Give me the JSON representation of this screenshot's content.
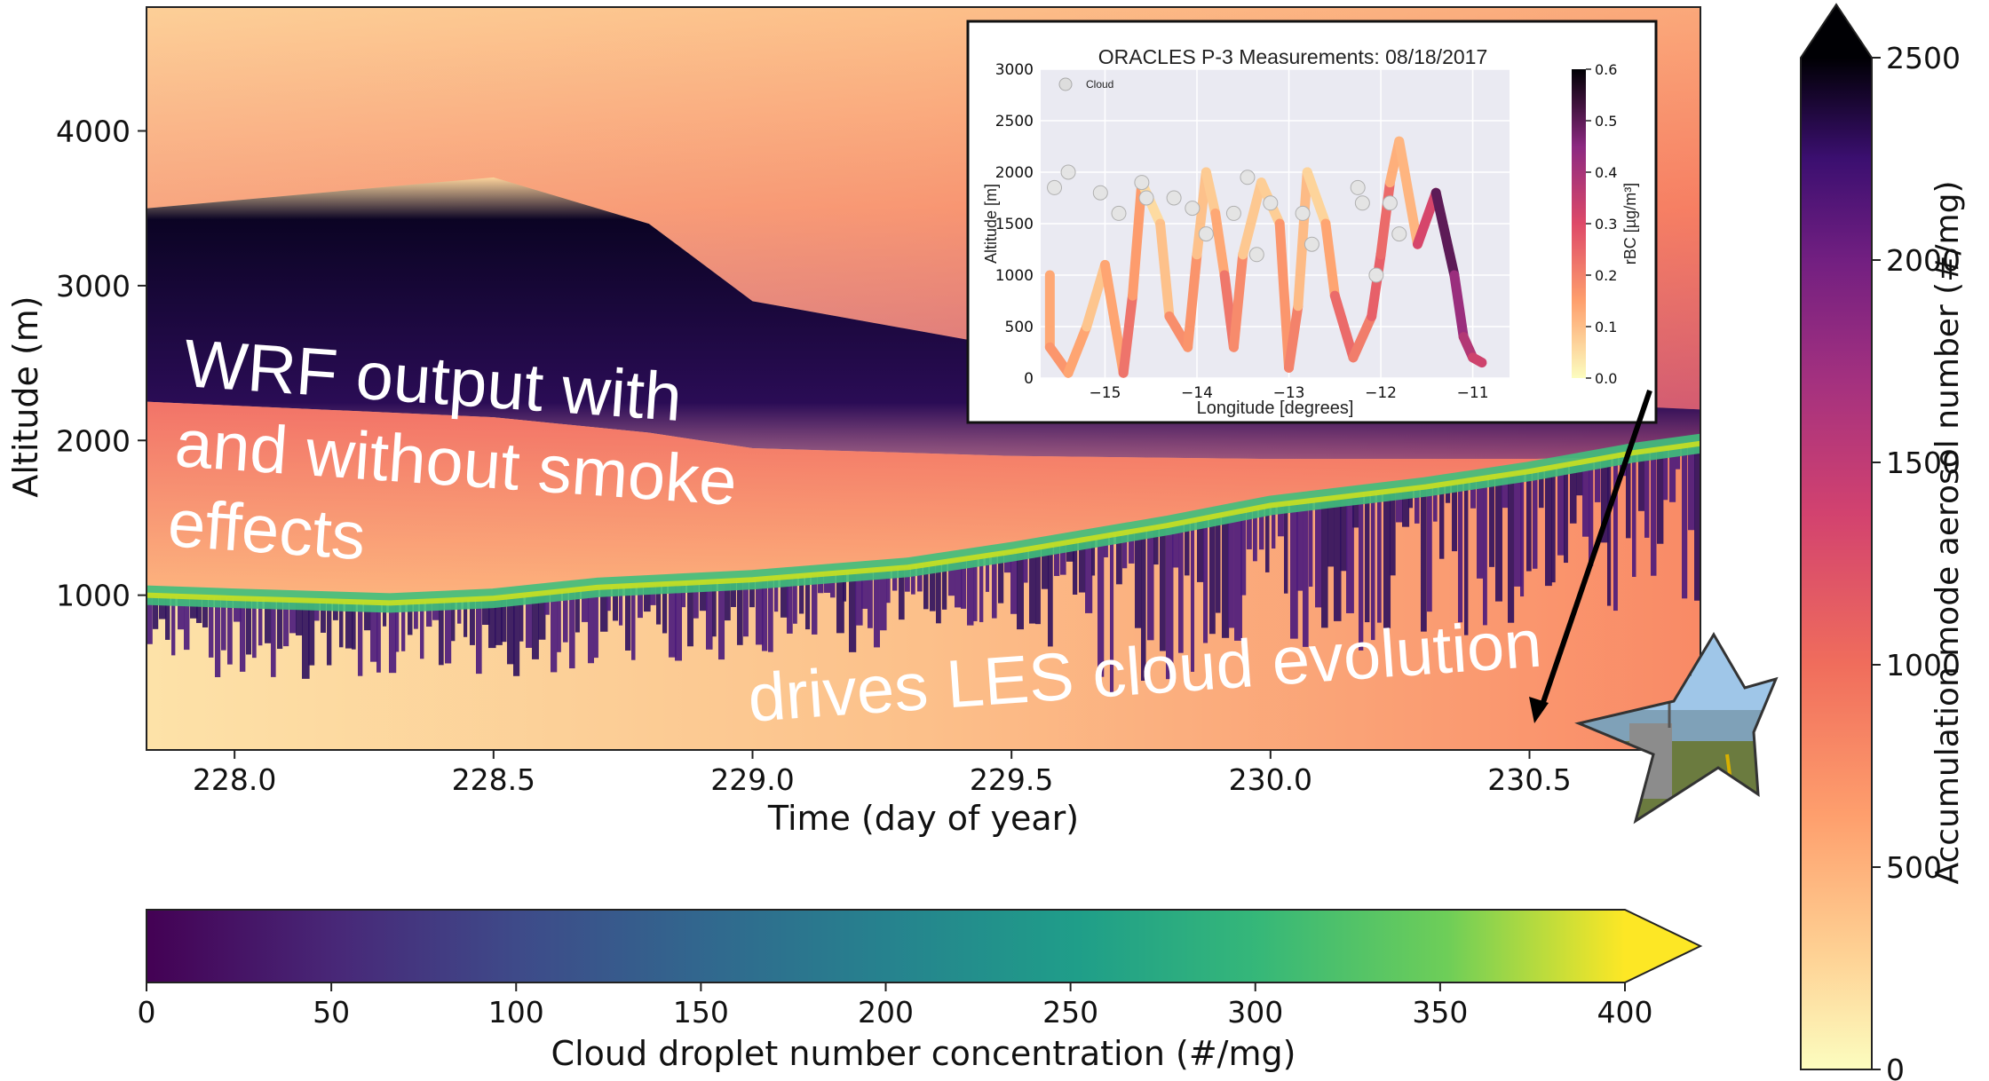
{
  "chart_data": [
    {
      "type": "heatmap",
      "xlabel": "Time (day of year)",
      "ylabel": "Altitude (m)",
      "xlim": [
        227.83,
        230.83
      ],
      "ylim": [
        0,
        4800
      ],
      "x_ticks": [
        228.0,
        228.5,
        229.0,
        229.5,
        230.0,
        230.5
      ],
      "y_ticks": [
        1000,
        2000,
        3000,
        4000
      ],
      "smoke_layer": {
        "description_values_day": [
          227.83,
          228.5,
          228.8,
          229.0,
          229.5,
          230.0,
          230.5,
          230.83
        ],
        "top_altitude_m": [
          3500,
          3700,
          3400,
          2900,
          2600,
          2350,
          2250,
          2200
        ],
        "bottom_altitude_m": [
          2250,
          2150,
          2050,
          1950,
          1900,
          1880,
          1880,
          1900
        ]
      },
      "cloud_layer": {
        "x": [
          227.83,
          228.0,
          228.3,
          228.5,
          228.7,
          229.0,
          229.3,
          229.5,
          229.8,
          230.0,
          230.3,
          230.5,
          230.7,
          230.83
        ],
        "altitude_m": [
          1000,
          980,
          950,
          980,
          1050,
          1100,
          1180,
          1280,
          1450,
          1580,
          1700,
          1800,
          1920,
          1980
        ]
      },
      "colorbars": [
        {
          "label": "Accumulation mode aerosol number (#/mg)",
          "orientation": "vertical",
          "ticks": [
            0,
            500,
            1000,
            1500,
            2000,
            2500
          ],
          "range": [
            0,
            2500
          ],
          "extend": "max",
          "colormap": "magma_r"
        },
        {
          "label": "Cloud droplet number concentration (#/mg)",
          "orientation": "horizontal",
          "ticks": [
            0,
            50,
            100,
            150,
            200,
            250,
            300,
            350,
            400
          ],
          "range": [
            0,
            400
          ],
          "extend": "max",
          "colormap": "viridis"
        }
      ]
    },
    {
      "type": "scatter",
      "title": "ORACLES P-3 Measurements: 08/18/2017",
      "xlabel": "Longitude [degrees]",
      "ylabel": "Altitude [m]",
      "xlim": [
        -15.7,
        -10.6
      ],
      "ylim": [
        0,
        3000
      ],
      "x_ticks": [
        -15,
        -14,
        -13,
        -12,
        -11
      ],
      "y_ticks": [
        0,
        500,
        1000,
        1500,
        2000,
        2500,
        3000
      ],
      "legend": {
        "entries": [
          "Cloud"
        ],
        "placement": "top-left"
      },
      "colorbar": {
        "label": "rBC [µg/m³]",
        "ticks": [
          0.0,
          0.1,
          0.2,
          0.3,
          0.4,
          0.5,
          0.6
        ],
        "range": [
          0,
          0.6
        ]
      },
      "flight_track": {
        "x": [
          -15.6,
          -15.6,
          -15.4,
          -15.2,
          -15.0,
          -14.8,
          -14.7,
          -14.6,
          -14.4,
          -14.3,
          -14.1,
          -14.0,
          -13.9,
          -13.8,
          -13.7,
          -13.6,
          -13.5,
          -13.3,
          -13.1,
          -13.0,
          -12.9,
          -12.8,
          -12.6,
          -12.5,
          -12.3,
          -12.1,
          -12.0,
          -11.9,
          -11.8,
          -11.6,
          -11.4,
          -11.2,
          -11.1,
          -11.0,
          -10.9
        ],
        "alt": [
          1000,
          300,
          50,
          500,
          1100,
          50,
          800,
          1900,
          1500,
          600,
          300,
          1200,
          2000,
          1600,
          1000,
          300,
          1200,
          1900,
          1500,
          100,
          700,
          2000,
          1500,
          800,
          200,
          600,
          1200,
          1900,
          2300,
          1300,
          1800,
          1000,
          400,
          200,
          150
        ],
        "rbc": [
          0.12,
          0.15,
          0.18,
          0.1,
          0.08,
          0.2,
          0.25,
          0.06,
          0.05,
          0.14,
          0.22,
          0.12,
          0.07,
          0.09,
          0.18,
          0.26,
          0.11,
          0.06,
          0.09,
          0.24,
          0.16,
          0.05,
          0.08,
          0.2,
          0.28,
          0.14,
          0.38,
          0.1,
          0.15,
          0.08,
          0.55,
          0.45,
          0.4,
          0.36,
          0.3
        ]
      },
      "cloud_points": {
        "x": [
          -15.55,
          -15.4,
          -15.05,
          -14.85,
          -14.6,
          -14.55,
          -14.25,
          -14.05,
          -13.9,
          -13.6,
          -13.45,
          -13.35,
          -13.2,
          -12.85,
          -12.75,
          -12.25,
          -12.2,
          -12.05,
          -11.9,
          -11.8
        ],
        "alt": [
          1850,
          2000,
          1800,
          1600,
          1900,
          1750,
          1750,
          1650,
          1400,
          1600,
          1950,
          1200,
          1700,
          1600,
          1300,
          1850,
          1700,
          1000,
          1700,
          1400
        ]
      }
    }
  ],
  "annotations": {
    "wrf_line_1": "WRF output with",
    "wrf_line_2": "and without smoke",
    "wrf_line_3": "effects",
    "les_text": "drives LES cloud evolution"
  },
  "colors": {
    "annotation_text": "#ffffff",
    "arrow": "#000000",
    "star_outline": "#333333",
    "inset_background": "#eaeaf2"
  },
  "icons": {
    "photo": "ground-station-photo-star"
  }
}
